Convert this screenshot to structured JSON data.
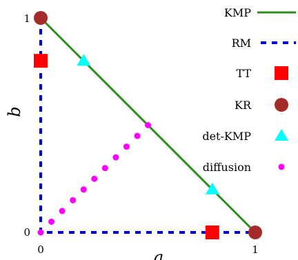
{
  "chart_data": {
    "type": "line",
    "title": "",
    "xlabel": "a",
    "ylabel": "b",
    "xlim": [
      0,
      1
    ],
    "ylim": [
      0,
      1
    ],
    "xticks": [
      "0",
      "1"
    ],
    "yticks": [
      "0",
      "1"
    ],
    "grid": false,
    "legend_position": "top-right",
    "series": [
      {
        "name": "KMP",
        "kind": "line",
        "style": "solid",
        "color": "#2e8b1e",
        "x": [
          0,
          1
        ],
        "y": [
          1,
          0
        ]
      },
      {
        "name": "RM",
        "kind": "line",
        "style": "dashed",
        "color": "#0000d0",
        "x": [
          0,
          0,
          1
        ],
        "y": [
          1,
          0,
          0
        ]
      },
      {
        "name": "TT",
        "kind": "scatter",
        "marker": "square",
        "color": "#ff0000",
        "x": [
          0,
          0.8
        ],
        "y": [
          0.8,
          0
        ]
      },
      {
        "name": "KR",
        "kind": "scatter",
        "marker": "circle",
        "color": "#a52a2a",
        "x": [
          0,
          1
        ],
        "y": [
          1,
          0
        ]
      },
      {
        "name": "det-KMP",
        "kind": "scatter",
        "marker": "triangle",
        "color": "#00ffff",
        "x": [
          0.2,
          0.8
        ],
        "y": [
          0.8,
          0.2
        ]
      },
      {
        "name": "diffusion",
        "kind": "scatter",
        "marker": "dot",
        "color": "#ff00ff",
        "x": [
          0,
          0.05,
          0.1,
          0.15,
          0.2,
          0.25,
          0.3,
          0.35,
          0.4,
          0.45,
          0.5
        ],
        "y": [
          0,
          0.05,
          0.1,
          0.15,
          0.2,
          0.25,
          0.3,
          0.35,
          0.4,
          0.45,
          0.5
        ]
      }
    ]
  }
}
